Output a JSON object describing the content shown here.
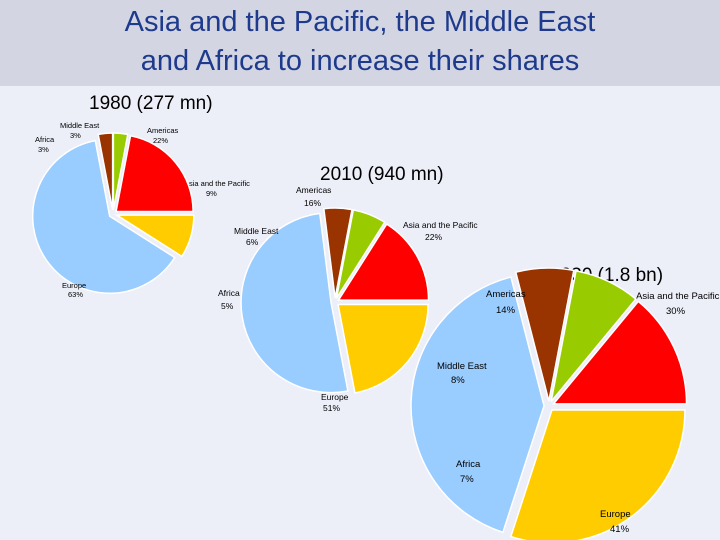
{
  "slide": {
    "title_line1": "Asia and the Pacific, the Middle East",
    "title_line2": "and Africa to increase their shares"
  },
  "colors": {
    "Asia and the Pacific": "#ffcc00",
    "Europe": "#99ccff",
    "Africa": "#993300",
    "Middle East": "#99cc00",
    "Americas": "#ff0000",
    "stroke": "#ffffff"
  },
  "chart_data": [
    {
      "type": "pie",
      "title": "1980 (277 mn)",
      "categories": [
        "Asia and the Pacific",
        "Europe",
        "Africa",
        "Middle East",
        "Americas"
      ],
      "values": [
        9,
        63,
        3,
        3,
        22
      ],
      "value_labels": [
        "9%",
        "63%",
        "3%",
        "3%",
        "22%"
      ]
    },
    {
      "type": "pie",
      "title": "2010 (940 mn)",
      "categories": [
        "Asia and the Pacific",
        "Europe",
        "Africa",
        "Middle East",
        "Americas"
      ],
      "values": [
        22,
        51,
        5,
        6,
        16
      ],
      "value_labels": [
        "22%",
        "51%",
        "5%",
        "6%",
        "16%"
      ]
    },
    {
      "type": "pie",
      "title": "2030 (1.8 bn)",
      "categories": [
        "Asia and the Pacific",
        "Europe",
        "Africa",
        "Middle East",
        "Americas"
      ],
      "values": [
        30,
        41,
        7,
        8,
        14
      ],
      "value_labels": [
        "30%",
        "41%",
        "7%",
        "8%",
        "14%"
      ]
    }
  ]
}
